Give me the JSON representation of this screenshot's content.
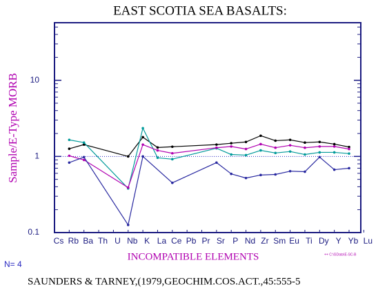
{
  "chart_data": {
    "type": "line",
    "title": "EAST SCOTIA SEA BASALTS:",
    "y_label": "Sample/E-Type MORB",
    "x_label": "INCOMPATIBLE ELEMENTS",
    "log_y": true,
    "ylim": [
      0.1,
      57
    ],
    "yticks": [
      0.1,
      1,
      10
    ],
    "reference_line": 1,
    "categories": [
      "Cs",
      "Rb",
      "Ba",
      "Th",
      "U",
      "Nb",
      "K",
      "La",
      "Ce",
      "Pb",
      "Pr",
      "Sr",
      "P",
      "Nd",
      "Zr",
      "Sm",
      "Eu",
      "Ti",
      "Dy",
      "Y",
      "Yb",
      "Lu"
    ],
    "series": [
      {
        "color": "#000000",
        "values": [
          null,
          1.26,
          1.43,
          null,
          null,
          1.0,
          1.79,
          1.31,
          1.34,
          null,
          null,
          1.43,
          1.49,
          1.55,
          1.87,
          1.61,
          1.65,
          1.52,
          1.55,
          1.45,
          1.33,
          null
        ]
      },
      {
        "color": "#009a9a",
        "values": [
          null,
          1.65,
          1.52,
          null,
          null,
          0.38,
          2.35,
          0.96,
          0.92,
          null,
          null,
          1.28,
          1.06,
          1.04,
          1.2,
          1.11,
          1.16,
          1.06,
          1.13,
          1.13,
          1.09,
          null
        ]
      },
      {
        "color": "#b000b0",
        "values": [
          null,
          1.02,
          0.9,
          null,
          null,
          0.39,
          1.43,
          1.2,
          1.1,
          null,
          null,
          1.3,
          1.35,
          1.25,
          1.45,
          1.3,
          1.4,
          1.3,
          1.35,
          1.35,
          1.25,
          null
        ]
      },
      {
        "color": "#2828a0",
        "values": [
          null,
          0.83,
          0.98,
          null,
          null,
          0.126,
          1.0,
          null,
          0.45,
          null,
          null,
          0.83,
          0.59,
          0.52,
          0.57,
          0.58,
          0.64,
          0.63,
          0.98,
          0.67,
          0.7,
          null
        ]
      }
    ],
    "n_label": "N= 4",
    "file_label": "++ C:\\GData\\E-SC-B",
    "footer": "SAUNDERS & TARNEY,(1979,GEOCHIM.COS.ACT.,45:555-5"
  }
}
